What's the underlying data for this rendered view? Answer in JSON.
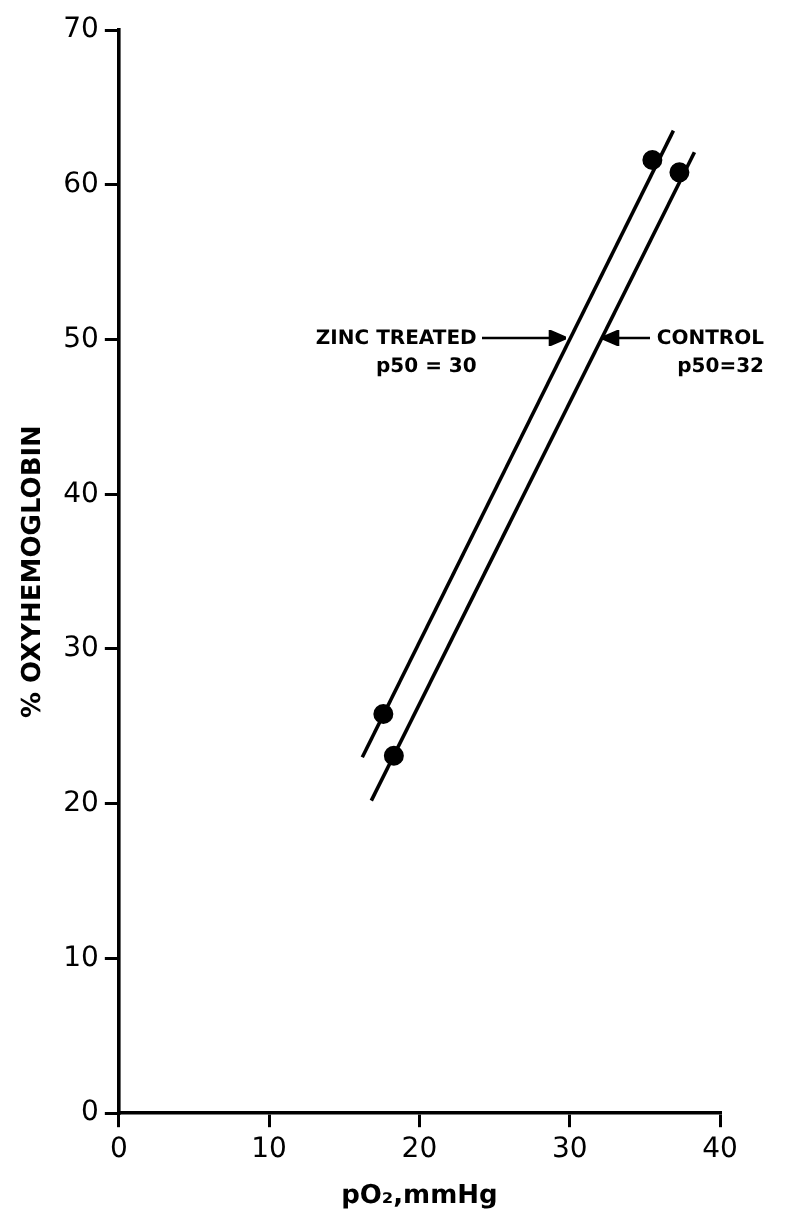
{
  "chart_data": {
    "type": "scatter",
    "xlabel": "pO₂,mmHg",
    "ylabel": "% OXYHEMOGLOBIN",
    "xlim": [
      0,
      40
    ],
    "xticks": [
      0,
      10,
      20,
      30,
      40
    ],
    "ylim": [
      0,
      70
    ],
    "yticks": [
      0,
      10,
      20,
      30,
      40,
      50,
      60,
      70
    ],
    "grid": false,
    "legend": false,
    "marker": "circle",
    "series": [
      {
        "color": "#000000",
        "x": [
          17.6,
          35.5
        ],
        "values": [
          25.8,
          61.6
        ]
      },
      {
        "color": "#000000",
        "x": [
          18.3,
          37.3
        ],
        "values": [
          23.1,
          60.8
        ]
      },
      {
        "type": "line",
        "marker": "none",
        "color": "#000000",
        "x": [
          16.2,
          36.9
        ],
        "values": [
          23,
          63.5
        ]
      },
      {
        "type": "line",
        "marker": "none",
        "color": "#000000",
        "x": [
          16.8,
          38.3
        ],
        "values": [
          20.2,
          62.1
        ]
      }
    ],
    "annotations": [
      "ZINC TREATED\np50 = 30",
      "CONTROL\np50=32"
    ]
  }
}
